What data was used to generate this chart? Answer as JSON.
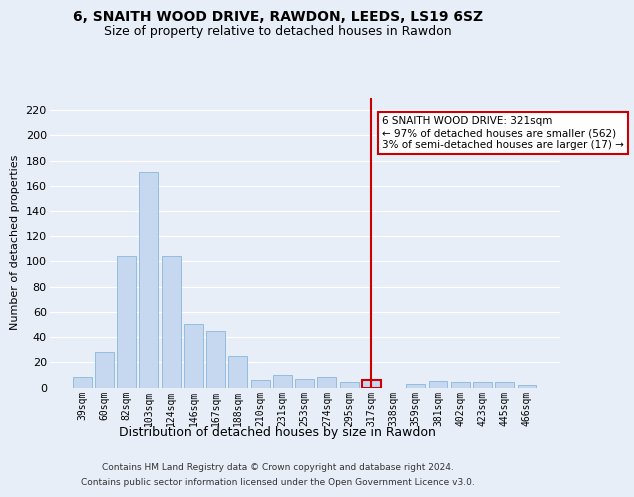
{
  "title_line1": "6, SNAITH WOOD DRIVE, RAWDON, LEEDS, LS19 6SZ",
  "title_line2": "Size of property relative to detached houses in Rawdon",
  "xlabel": "Distribution of detached houses by size in Rawdon",
  "ylabel": "Number of detached properties",
  "categories": [
    "39sqm",
    "60sqm",
    "82sqm",
    "103sqm",
    "124sqm",
    "146sqm",
    "167sqm",
    "188sqm",
    "210sqm",
    "231sqm",
    "253sqm",
    "274sqm",
    "295sqm",
    "317sqm",
    "338sqm",
    "359sqm",
    "381sqm",
    "402sqm",
    "423sqm",
    "445sqm",
    "466sqm"
  ],
  "values": [
    8,
    28,
    104,
    171,
    104,
    50,
    45,
    25,
    6,
    10,
    7,
    8,
    4,
    6,
    0,
    3,
    5,
    4,
    4,
    4,
    2
  ],
  "bar_color": "#c5d8ef",
  "bar_edge_color": "#7aadd4",
  "highlight_color": "#cc0000",
  "highlight_bar_index": 13,
  "annotation_title": "6 SNAITH WOOD DRIVE: 321sqm",
  "annotation_line2": "← 97% of detached houses are smaller (562)",
  "annotation_line3": "3% of semi-detached houses are larger (17) →",
  "ylim": [
    0,
    230
  ],
  "yticks": [
    0,
    20,
    40,
    60,
    80,
    100,
    120,
    140,
    160,
    180,
    200,
    220
  ],
  "background_color": "#e8eef8",
  "grid_color": "#ffffff",
  "footer_line1": "Contains HM Land Registry data © Crown copyright and database right 2024.",
  "footer_line2": "Contains public sector information licensed under the Open Government Licence v3.0."
}
